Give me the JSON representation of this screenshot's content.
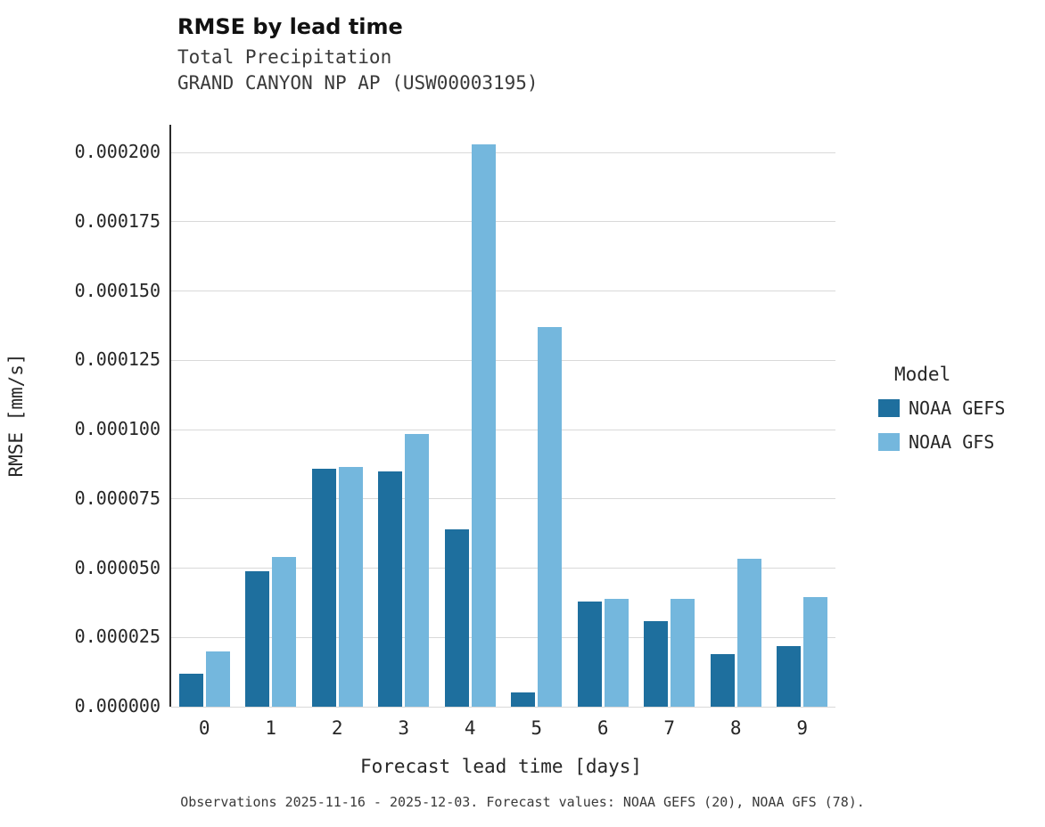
{
  "title": "RMSE by lead time",
  "subtitle1": "Total Precipitation",
  "subtitle2": "GRAND CANYON NP AP (USW00003195)",
  "caption": "Observations 2025-11-16 - 2025-12-03. Forecast values: NOAA GEFS (20), NOAA GFS (78).",
  "legend": {
    "title": "Model",
    "entries": [
      {
        "label": "NOAA GEFS",
        "color": "#1e6f9e"
      },
      {
        "label": "NOAA GFS",
        "color": "#74b7dd"
      }
    ]
  },
  "chart_data": {
    "type": "bar",
    "title": "RMSE by lead time",
    "xlabel": "Forecast lead time [days]",
    "ylabel": "RMSE [mm/s]",
    "categories": [
      "0",
      "1",
      "2",
      "3",
      "4",
      "5",
      "6",
      "7",
      "8",
      "9"
    ],
    "series": [
      {
        "name": "NOAA GEFS",
        "color": "#1e6f9e",
        "values": [
          1.2e-05,
          4.9e-05,
          8.6e-05,
          8.5e-05,
          6.4e-05,
          5e-06,
          3.8e-05,
          3.1e-05,
          1.9e-05,
          2.2e-05
        ]
      },
      {
        "name": "NOAA GFS",
        "color": "#74b7dd",
        "values": [
          2e-05,
          5.4e-05,
          8.65e-05,
          9.85e-05,
          0.000203,
          0.000137,
          3.9e-05,
          3.9e-05,
          5.35e-05,
          3.95e-05
        ]
      }
    ],
    "ylim": [
      0,
      0.00021
    ],
    "ytick_step": 2.5e-05,
    "ytick_max": 0.0002,
    "ytick_format_decimals": 6,
    "grid": true,
    "legend_position": "right"
  }
}
